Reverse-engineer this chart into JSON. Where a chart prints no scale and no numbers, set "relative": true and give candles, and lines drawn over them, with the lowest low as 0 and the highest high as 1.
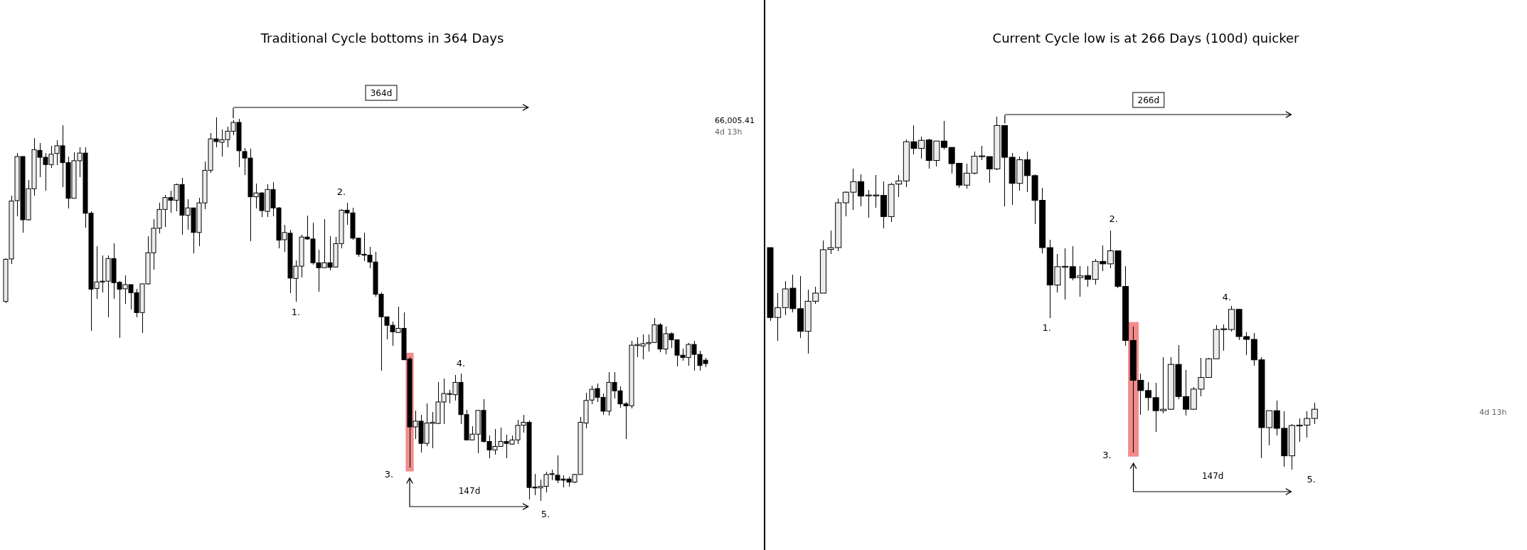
{
  "chart_data": [
    {
      "type": "candlestick",
      "title": "Traditional Cycle bottoms in 364 Days",
      "relative": true,
      "color": "#000000",
      "categories": [
        null,
        null,
        null,
        null,
        null,
        null,
        null,
        null,
        null,
        null,
        null,
        null,
        null,
        null,
        null,
        null,
        null,
        null,
        null,
        null,
        null,
        null,
        null,
        null,
        null,
        null,
        null,
        null,
        null,
        null,
        null,
        null,
        null,
        null,
        null,
        null,
        null,
        null,
        null,
        null,
        null,
        null,
        null,
        null,
        null,
        null,
        null,
        null,
        null,
        null,
        null,
        null,
        null,
        null,
        null,
        null,
        null,
        null,
        null,
        null,
        null,
        null,
        null,
        null,
        null,
        null,
        null,
        null,
        null,
        null,
        null,
        null,
        null,
        null,
        null,
        null,
        null,
        null,
        null,
        null,
        null,
        null,
        null,
        null,
        null,
        null,
        null,
        null,
        null,
        null,
        null,
        null,
        null,
        null,
        null,
        null,
        null,
        null,
        null,
        null,
        null,
        null,
        null,
        null,
        null,
        null,
        null,
        null,
        null,
        null,
        null,
        null,
        null,
        null,
        null,
        null,
        null,
        null,
        null,
        null,
        null,
        null,
        null,
        null
      ],
      "ohlc": [
        [
          0.52,
          0.633,
          0.516,
          0.63
        ],
        [
          0.631,
          0.796,
          0.617,
          0.782
        ],
        [
          0.783,
          0.908,
          0.743,
          0.898
        ],
        [
          0.898,
          0.898,
          0.7,
          0.733
        ],
        [
          0.733,
          0.837,
          0.731,
          0.814
        ],
        [
          0.814,
          0.946,
          0.795,
          0.916
        ],
        [
          0.914,
          0.933,
          0.844,
          0.896
        ],
        [
          0.896,
          0.908,
          0.808,
          0.877
        ],
        [
          0.877,
          0.926,
          0.868,
          0.904
        ],
        [
          0.906,
          0.94,
          0.876,
          0.926
        ],
        [
          0.926,
          0.98,
          0.819,
          0.882
        ],
        [
          0.882,
          0.898,
          0.762,
          0.789
        ],
        [
          0.789,
          0.91,
          0.788,
          0.887
        ],
        [
          0.887,
          0.922,
          0.844,
          0.907
        ],
        [
          0.907,
          0.922,
          0.713,
          0.75
        ],
        [
          0.75,
          0.755,
          0.444,
          0.552
        ],
        [
          0.554,
          0.664,
          0.526,
          0.571
        ],
        [
          0.571,
          0.64,
          0.544,
          0.573
        ],
        [
          0.573,
          0.64,
          0.478,
          0.632
        ],
        [
          0.632,
          0.672,
          0.526,
          0.569
        ],
        [
          0.57,
          0.573,
          0.425,
          0.552
        ],
        [
          0.553,
          0.588,
          0.513,
          0.564
        ],
        [
          0.564,
          0.564,
          0.5,
          0.543
        ],
        [
          0.543,
          0.553,
          0.478,
          0.491
        ],
        [
          0.491,
          0.566,
          0.438,
          0.566
        ],
        [
          0.566,
          0.691,
          0.564,
          0.647
        ],
        [
          0.647,
          0.734,
          0.603,
          0.711
        ],
        [
          0.711,
          0.777,
          0.697,
          0.76
        ],
        [
          0.76,
          0.798,
          0.715,
          0.791
        ],
        [
          0.791,
          0.808,
          0.751,
          0.784
        ],
        [
          0.784,
          0.827,
          0.755,
          0.825
        ],
        [
          0.825,
          0.843,
          0.693,
          0.745
        ],
        [
          0.745,
          0.786,
          0.707,
          0.764
        ],
        [
          0.764,
          0.765,
          0.645,
          0.7
        ],
        [
          0.7,
          0.791,
          0.664,
          0.777
        ],
        [
          0.777,
          0.885,
          0.76,
          0.862
        ],
        [
          0.862,
          0.959,
          0.855,
          0.944
        ],
        [
          0.944,
          1.0,
          0.922,
          0.937
        ],
        [
          0.935,
          0.968,
          0.898,
          0.942
        ],
        [
          0.942,
          0.975,
          0.922,
          0.964
        ],
        [
          0.964,
          0.992,
          0.954,
          0.987
        ],
        [
          0.987,
          0.997,
          0.871,
          0.913
        ],
        [
          0.911,
          0.92,
          0.85,
          0.894
        ],
        [
          0.894,
          0.918,
          0.678,
          0.793
        ],
        [
          0.793,
          0.827,
          0.762,
          0.803
        ],
        [
          0.803,
          0.805,
          0.74,
          0.757
        ],
        [
          0.755,
          0.825,
          0.74,
          0.812
        ],
        [
          0.812,
          0.831,
          0.743,
          0.764
        ],
        [
          0.764,
          0.767,
          0.659,
          0.68
        ],
        [
          0.681,
          0.72,
          0.649,
          0.7
        ],
        [
          0.698,
          0.707,
          0.542,
          0.581
        ],
        [
          0.58,
          0.628,
          0.52,
          0.612
        ],
        [
          0.612,
          0.693,
          0.583,
          0.688
        ],
        [
          0.688,
          0.744,
          0.681,
          0.683
        ],
        [
          0.683,
          0.726,
          0.616,
          0.621
        ],
        [
          0.621,
          0.655,
          0.546,
          0.608
        ],
        [
          0.608,
          0.735,
          0.608,
          0.621
        ],
        [
          0.621,
          0.691,
          0.602,
          0.609
        ],
        [
          0.61,
          0.688,
          0.609,
          0.671
        ],
        [
          0.671,
          0.76,
          0.659,
          0.758
        ],
        [
          0.758,
          0.777,
          0.72,
          0.751
        ],
        [
          0.751,
          0.764,
          0.681,
          0.685
        ],
        [
          0.685,
          0.687,
          0.636,
          0.643
        ],
        [
          0.643,
          0.7,
          0.626,
          0.641
        ],
        [
          0.641,
          0.662,
          0.606,
          0.623
        ],
        [
          0.623,
          0.649,
          0.533,
          0.539
        ],
        [
          0.539,
          0.543,
          0.339,
          0.48
        ],
        [
          0.48,
          0.48,
          0.422,
          0.458
        ],
        [
          0.458,
          0.467,
          0.404,
          0.441
        ],
        [
          0.439,
          0.506,
          0.437,
          0.45
        ],
        [
          0.45,
          0.492,
          0.367,
          0.368
        ],
        [
          0.37,
          0.375,
          0.088,
          0.193
        ],
        [
          0.193,
          0.236,
          0.162,
          0.208
        ],
        [
          0.208,
          0.225,
          0.126,
          0.15
        ],
        [
          0.15,
          0.255,
          0.142,
          0.203
        ],
        [
          0.202,
          0.231,
          0.137,
          0.205
        ],
        [
          0.202,
          0.309,
          0.2,
          0.258
        ],
        [
          0.258,
          0.32,
          0.2,
          0.28
        ],
        [
          0.278,
          0.289,
          0.255,
          0.28
        ],
        [
          0.277,
          0.329,
          0.262,
          0.309
        ],
        [
          0.309,
          0.333,
          0.2,
          0.225
        ],
        [
          0.225,
          0.238,
          0.159,
          0.159
        ],
        [
          0.159,
          0.195,
          0.159,
          0.174
        ],
        [
          0.174,
          0.236,
          0.124,
          0.236
        ],
        [
          0.236,
          0.265,
          0.153,
          0.155
        ],
        [
          0.155,
          0.17,
          0.111,
          0.133
        ],
        [
          0.133,
          0.188,
          0.121,
          0.142
        ],
        [
          0.142,
          0.191,
          0.142,
          0.155
        ],
        [
          0.155,
          0.173,
          0.111,
          0.15
        ],
        [
          0.148,
          0.17,
          0.147,
          0.159
        ],
        [
          0.159,
          0.212,
          0.148,
          0.197
        ],
        [
          0.197,
          0.224,
          0.179,
          0.205
        ],
        [
          0.205,
          0.209,
          0.004,
          0.035
        ],
        [
          0.036,
          0.071,
          0.014,
          0.034
        ],
        [
          0.034,
          0.056,
          0.0,
          0.038
        ],
        [
          0.038,
          0.076,
          0.023,
          0.069
        ],
        [
          0.069,
          0.081,
          0.054,
          0.071
        ],
        [
          0.067,
          0.118,
          0.047,
          0.054
        ],
        [
          0.057,
          0.066,
          0.035,
          0.054
        ],
        [
          0.057,
          0.063,
          0.038,
          0.049
        ],
        [
          0.049,
          0.071,
          0.047,
          0.069
        ],
        [
          0.069,
          0.219,
          0.068,
          0.205
        ],
        [
          0.203,
          0.282,
          0.19,
          0.262
        ],
        [
          0.263,
          0.3,
          0.252,
          0.291
        ],
        [
          0.293,
          0.307,
          0.258,
          0.27
        ],
        [
          0.27,
          0.28,
          0.224,
          0.234
        ],
        [
          0.234,
          0.335,
          0.222,
          0.309
        ],
        [
          0.309,
          0.335,
          0.267,
          0.287
        ],
        [
          0.287,
          0.298,
          0.243,
          0.253
        ],
        [
          0.253,
          0.258,
          0.161,
          0.248
        ],
        [
          0.248,
          0.418,
          0.241,
          0.406
        ],
        [
          0.405,
          0.427,
          0.375,
          0.408
        ],
        [
          0.404,
          0.434,
          0.37,
          0.41
        ],
        [
          0.41,
          0.435,
          0.389,
          0.413
        ],
        [
          0.413,
          0.477,
          0.411,
          0.459
        ],
        [
          0.459,
          0.463,
          0.387,
          0.396
        ],
        [
          0.396,
          0.454,
          0.382,
          0.436
        ],
        [
          0.436,
          0.439,
          0.399,
          0.42
        ],
        [
          0.42,
          0.422,
          0.351,
          0.38
        ],
        [
          0.38,
          0.397,
          0.366,
          0.374
        ],
        [
          0.374,
          0.412,
          0.353,
          0.408
        ],
        [
          0.408,
          0.417,
          0.339,
          0.382
        ],
        [
          0.382,
          0.391,
          0.339,
          0.353
        ],
        [
          0.367,
          0.372,
          0.348,
          0.358
        ]
      ],
      "annotations": [
        "364d",
        "147d",
        "1.",
        "2.",
        "3.",
        "4.",
        "5.",
        "66,005.41",
        "4d 13h"
      ]
    },
    {
      "type": "candlestick",
      "title": "Current Cycle low is at 266 Days (100d) quicker",
      "relative": true,
      "color": "#000000",
      "categories": [
        null,
        null,
        null,
        null,
        null,
        null,
        null,
        null,
        null,
        null,
        null,
        null,
        null,
        null,
        null,
        null,
        null,
        null,
        null,
        null,
        null,
        null,
        null,
        null,
        null,
        null,
        null,
        null,
        null,
        null,
        null,
        null,
        null,
        null,
        null,
        null,
        null,
        null,
        null,
        null,
        null,
        null,
        null,
        null,
        null,
        null,
        null,
        null,
        null,
        null,
        null,
        null,
        null,
        null,
        null,
        null,
        null,
        null,
        null,
        null,
        null,
        null,
        null,
        null,
        null,
        null,
        null,
        null,
        null,
        null,
        null,
        null,
        null
      ],
      "ohlc": [
        [
          0.629,
          0.629,
          0.422,
          0.431
        ],
        [
          0.431,
          0.5,
          0.364,
          0.459
        ],
        [
          0.459,
          0.534,
          0.438,
          0.512
        ],
        [
          0.514,
          0.553,
          0.445,
          0.456
        ],
        [
          0.456,
          0.548,
          0.372,
          0.392
        ],
        [
          0.392,
          0.511,
          0.329,
          0.477
        ],
        [
          0.477,
          0.518,
          0.47,
          0.5
        ],
        [
          0.5,
          0.65,
          0.5,
          0.623
        ],
        [
          0.624,
          0.678,
          0.611,
          0.629
        ],
        [
          0.629,
          0.768,
          0.618,
          0.756
        ],
        [
          0.756,
          0.789,
          0.717,
          0.786
        ],
        [
          0.786,
          0.852,
          0.735,
          0.816
        ],
        [
          0.816,
          0.837,
          0.746,
          0.775
        ],
        [
          0.777,
          0.792,
          0.714,
          0.778
        ],
        [
          0.777,
          0.834,
          0.742,
          0.778
        ],
        [
          0.777,
          0.816,
          0.684,
          0.717
        ],
        [
          0.717,
          0.813,
          0.701,
          0.808
        ],
        [
          0.809,
          0.834,
          0.772,
          0.818
        ],
        [
          0.818,
          0.935,
          0.8,
          0.929
        ],
        [
          0.929,
          0.975,
          0.894,
          0.91
        ],
        [
          0.91,
          0.943,
          0.882,
          0.933
        ],
        [
          0.934,
          0.938,
          0.852,
          0.876
        ],
        [
          0.876,
          0.931,
          0.859,
          0.931
        ],
        [
          0.931,
          0.988,
          0.908,
          0.913
        ],
        [
          0.913,
          0.914,
          0.839,
          0.867
        ],
        [
          0.868,
          0.869,
          0.799,
          0.806
        ],
        [
          0.806,
          0.866,
          0.796,
          0.84
        ],
        [
          0.84,
          0.902,
          0.837,
          0.888
        ],
        [
          0.887,
          0.917,
          0.878,
          0.889
        ],
        [
          0.887,
          0.888,
          0.813,
          0.852
        ],
        [
          0.852,
          1.0,
          0.848,
          0.975
        ],
        [
          0.975,
          0.975,
          0.746,
          0.885
        ],
        [
          0.885,
          0.897,
          0.751,
          0.811
        ],
        [
          0.811,
          0.888,
          0.79,
          0.878
        ],
        [
          0.878,
          0.901,
          0.786,
          0.833
        ],
        [
          0.833,
          0.837,
          0.695,
          0.763
        ],
        [
          0.763,
          0.799,
          0.613,
          0.629
        ],
        [
          0.629,
          0.652,
          0.429,
          0.523
        ],
        [
          0.523,
          0.611,
          0.502,
          0.575
        ],
        [
          0.575,
          0.627,
          0.481,
          0.576
        ],
        [
          0.575,
          0.634,
          0.537,
          0.543
        ],
        [
          0.544,
          0.576,
          0.49,
          0.549
        ],
        [
          0.55,
          0.577,
          0.519,
          0.539
        ],
        [
          0.539,
          0.596,
          0.525,
          0.59
        ],
        [
          0.59,
          0.635,
          0.562,
          0.583
        ],
        [
          0.583,
          0.678,
          0.57,
          0.62
        ],
        [
          0.62,
          0.62,
          0.514,
          0.519
        ],
        [
          0.519,
          0.577,
          0.35,
          0.366
        ],
        [
          0.366,
          0.406,
          0.049,
          0.253
        ],
        [
          0.253,
          0.273,
          0.155,
          0.224
        ],
        [
          0.224,
          0.247,
          0.167,
          0.204
        ],
        [
          0.204,
          0.245,
          0.106,
          0.167
        ],
        [
          0.167,
          0.319,
          0.16,
          0.171
        ],
        [
          0.171,
          0.318,
          0.17,
          0.298
        ],
        [
          0.298,
          0.352,
          0.2,
          0.207
        ],
        [
          0.207,
          0.283,
          0.153,
          0.171
        ],
        [
          0.171,
          0.233,
          0.17,
          0.228
        ],
        [
          0.228,
          0.316,
          0.208,
          0.261
        ],
        [
          0.261,
          0.316,
          0.26,
          0.314
        ],
        [
          0.314,
          0.41,
          0.314,
          0.397
        ],
        [
          0.398,
          0.412,
          0.337,
          0.399
        ],
        [
          0.397,
          0.464,
          0.392,
          0.454
        ],
        [
          0.454,
          0.456,
          0.367,
          0.377
        ],
        [
          0.377,
          0.389,
          0.325,
          0.369
        ],
        [
          0.369,
          0.387,
          0.295,
          0.311
        ],
        [
          0.311,
          0.318,
          0.032,
          0.119
        ],
        [
          0.119,
          0.167,
          0.069,
          0.167
        ],
        [
          0.167,
          0.196,
          0.097,
          0.117
        ],
        [
          0.117,
          0.165,
          0.009,
          0.039
        ],
        [
          0.039,
          0.129,
          0.0,
          0.125
        ],
        [
          0.125,
          0.146,
          0.078,
          0.126
        ],
        [
          0.126,
          0.165,
          0.09,
          0.145
        ],
        [
          0.145,
          0.189,
          0.129,
          0.171
        ]
      ],
      "annotations": [
        "266d",
        "147d",
        "1.",
        "2.",
        "3.",
        "4.",
        "5.",
        "4d 13h"
      ]
    }
  ]
}
